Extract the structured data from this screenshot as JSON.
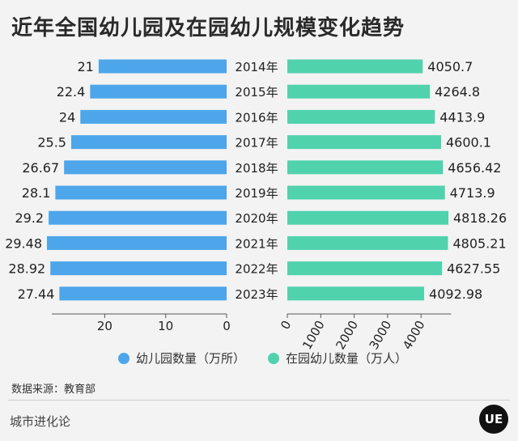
{
  "title": "近年全国幼儿园及在园幼儿规模变化趋势",
  "chart_data": {
    "type": "bar",
    "orientation": "horizontal-back-to-back",
    "categories": [
      "2014年",
      "2015年",
      "2016年",
      "2017年",
      "2018年",
      "2019年",
      "2020年",
      "2021年",
      "2022年",
      "2023年"
    ],
    "series": [
      {
        "name": "幼儿园数量（万所）",
        "color": "#4da6ea",
        "values": [
          21,
          22.4,
          24,
          25.5,
          26.67,
          28.1,
          29.2,
          29.48,
          28.92,
          27.44
        ],
        "labels": [
          "21",
          "22.4",
          "24",
          "25.5",
          "26.67",
          "28.1",
          "29.2",
          "29.48",
          "28.92",
          "27.44"
        ],
        "axis": {
          "range": [
            0,
            30
          ],
          "ticks": [
            20,
            10,
            0
          ],
          "direction": "leftward"
        }
      },
      {
        "name": "在园幼儿数量（万人）",
        "color": "#50d2ad",
        "values": [
          4050.7,
          4264.8,
          4413.9,
          4600.1,
          4656.42,
          4713.9,
          4818.26,
          4805.21,
          4627.55,
          4092.98
        ],
        "labels": [
          "4050.7",
          "4264.8",
          "4413.9",
          "4600.1",
          "4656.42",
          "4713.9",
          "4818.26",
          "4805.21",
          "4627.55",
          "4092.98"
        ],
        "axis": {
          "range": [
            0,
            4900
          ],
          "ticks": [
            0,
            1000,
            2000,
            3000,
            4000
          ],
          "direction": "rightward"
        }
      }
    ],
    "grid": false,
    "legend": "bottom"
  },
  "source": "数据来源：教育部",
  "footer": "城市进化论",
  "logo_text": "UE"
}
